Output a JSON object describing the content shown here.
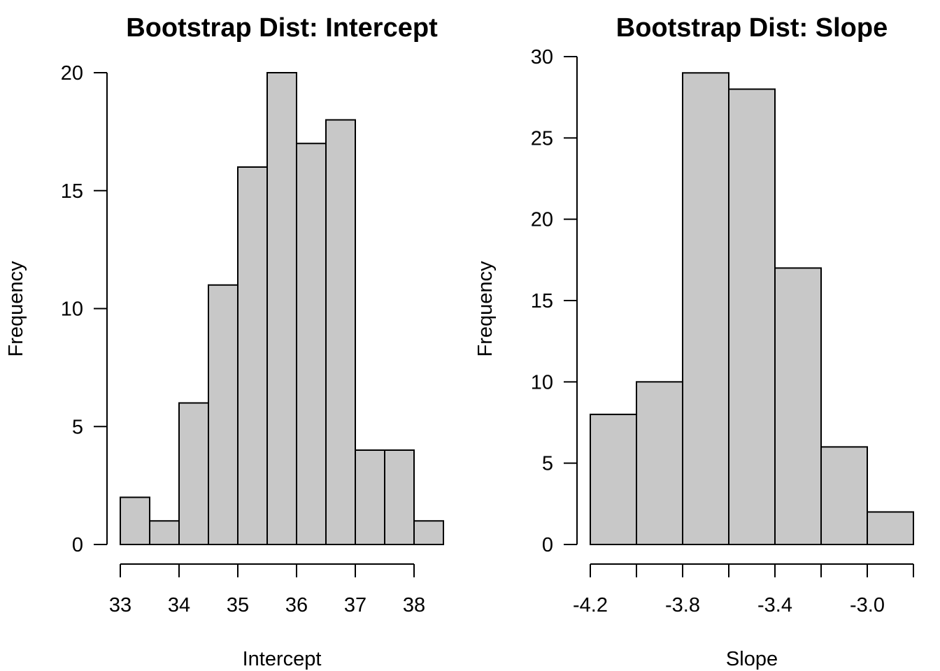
{
  "chart_data": [
    {
      "type": "bar",
      "title": "Bootstrap Dist: Intercept",
      "xlabel": "Intercept",
      "ylabel": "Frequency",
      "bin_edges": [
        33,
        33.5,
        34,
        34.5,
        35,
        35.5,
        36,
        36.5,
        37,
        37.5,
        38,
        38.5
      ],
      "values": [
        2,
        1,
        6,
        11,
        16,
        20,
        17,
        18,
        4,
        4,
        1
      ],
      "xlim": [
        33,
        38.5
      ],
      "ylim": [
        0,
        20
      ],
      "x_ticks": [
        33,
        34,
        35,
        36,
        37,
        38
      ],
      "x_tick_labels": [
        "33",
        "34",
        "35",
        "36",
        "37",
        "38"
      ],
      "y_ticks": [
        0,
        5,
        10,
        15,
        20
      ],
      "y_tick_labels": [
        "0",
        "5",
        "10",
        "15",
        "20"
      ],
      "bar_color": "#c8c8c8",
      "grid": false
    },
    {
      "type": "bar",
      "title": "Bootstrap Dist: Slope",
      "xlabel": "Slope",
      "ylabel": "Frequency",
      "bin_edges": [
        -4.2,
        -4.0,
        -3.8,
        -3.6,
        -3.4,
        -3.2,
        -3.0,
        -2.8
      ],
      "values": [
        8,
        10,
        29,
        28,
        17,
        6,
        2
      ],
      "xlim": [
        -4.2,
        -2.8
      ],
      "ylim": [
        0,
        30
      ],
      "x_ticks": [
        -4.2,
        -4.0,
        -3.8,
        -3.6,
        -3.4,
        -3.2,
        -3.0,
        -2.8
      ],
      "x_tick_labels": [
        "-4.2",
        "",
        "-3.8",
        "",
        "-3.4",
        "",
        "-3.0",
        ""
      ],
      "y_ticks": [
        0,
        5,
        10,
        15,
        20,
        25,
        30
      ],
      "y_tick_labels": [
        "0",
        "5",
        "10",
        "15",
        "20",
        "25",
        "30"
      ],
      "bar_color": "#c8c8c8",
      "grid": false
    }
  ]
}
